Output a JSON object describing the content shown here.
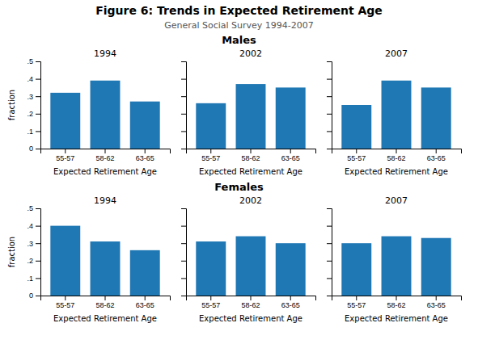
{
  "title": "Figure 6: Trends in Expected Retirement Age",
  "subtitle": "General Social Survey 1994-2007",
  "chart_data": [
    {
      "type": "bar",
      "title": "Males",
      "categories": [
        "55-57",
        "58-62",
        "63-65"
      ],
      "xlabel": "Expected Retirement Age",
      "ylabel": "fraction",
      "ylim": [
        0,
        0.5
      ],
      "yticks": [
        0,
        {
          "value": 0.1,
          "label": ".1"
        },
        {
          "value": 0.2,
          "label": ".2"
        },
        {
          "value": 0.3,
          "label": ".3"
        },
        {
          "value": 0.4,
          "label": ".4"
        },
        {
          "value": 0.5,
          "label": ".5"
        }
      ],
      "series": [
        {
          "name": "1994",
          "values": [
            0.32,
            0.39,
            0.27
          ]
        },
        {
          "name": "2002",
          "values": [
            0.26,
            0.37,
            0.35
          ]
        },
        {
          "name": "2007",
          "values": [
            0.25,
            0.39,
            0.35
          ]
        }
      ]
    },
    {
      "type": "bar",
      "title": "Females",
      "categories": [
        "55-57",
        "58-62",
        "63-65"
      ],
      "xlabel": "Expected Retirement Age",
      "ylabel": "fraction",
      "ylim": [
        0,
        0.5
      ],
      "yticks": [
        0,
        {
          "value": 0.1,
          "label": ".1"
        },
        {
          "value": 0.2,
          "label": ".2"
        },
        {
          "value": 0.3,
          "label": ".3"
        },
        {
          "value": 0.4,
          "label": ".4"
        },
        {
          "value": 0.5,
          "label": ".5"
        }
      ],
      "series": [
        {
          "name": "1994",
          "values": [
            0.4,
            0.31,
            0.26
          ]
        },
        {
          "name": "2002",
          "values": [
            0.31,
            0.34,
            0.3
          ]
        },
        {
          "name": "2007",
          "values": [
            0.3,
            0.34,
            0.33
          ]
        }
      ]
    }
  ]
}
